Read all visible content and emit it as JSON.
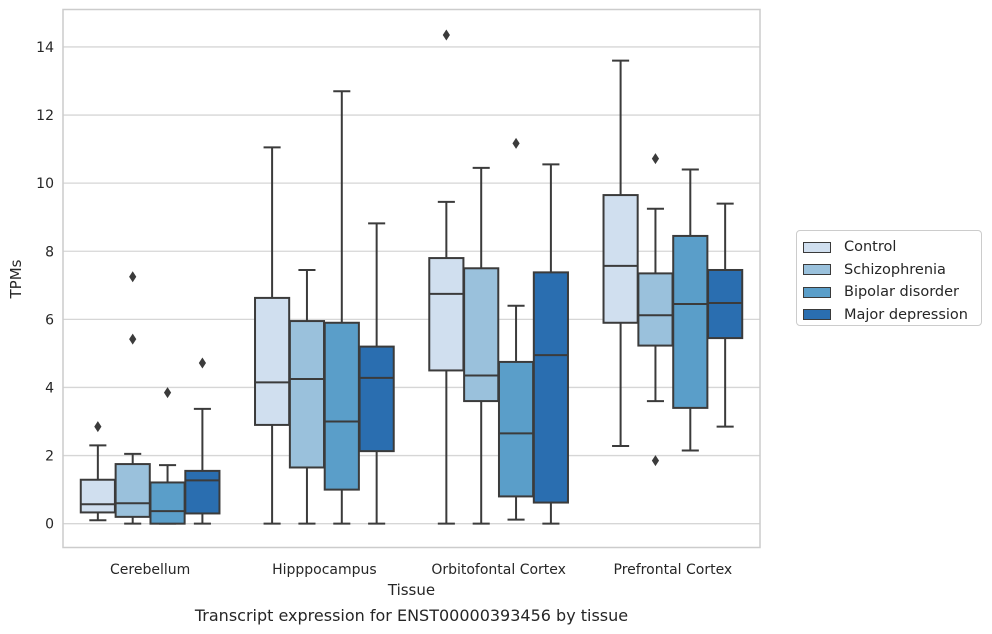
{
  "chart_data": {
    "type": "box",
    "caption": "Transcript expression for ENST00000393456 by tissue",
    "xlabel": "Tissue",
    "ylabel": "TPMs",
    "ylim": [
      -0.7,
      15.1
    ],
    "yticks": [
      0,
      2,
      4,
      6,
      8,
      10,
      12,
      14
    ],
    "grid": "horizontal",
    "legend_position": "right",
    "categories": [
      "Cerebellum",
      "Hipppocampus",
      "Orbitofontal Cortex",
      "Prefrontal Cortex"
    ],
    "series": [
      {
        "name": "Control",
        "color": "#d0dfef",
        "boxes": [
          {
            "whisker_low": 0.1,
            "q1": 0.33,
            "median": 0.57,
            "q3": 1.29,
            "whisker_high": 2.3,
            "outliers": [
              2.85
            ]
          },
          {
            "whisker_low": 0.0,
            "q1": 2.9,
            "median": 4.15,
            "q3": 6.63,
            "whisker_high": 11.05,
            "outliers": []
          },
          {
            "whisker_low": 0.0,
            "q1": 4.5,
            "median": 6.75,
            "q3": 7.8,
            "whisker_high": 9.45,
            "outliers": [
              14.35
            ]
          },
          {
            "whisker_low": 2.28,
            "q1": 5.9,
            "median": 7.57,
            "q3": 9.65,
            "whisker_high": 13.6,
            "outliers": []
          }
        ]
      },
      {
        "name": "Schizophrenia",
        "color": "#9ac1dc",
        "boxes": [
          {
            "whisker_low": 0.0,
            "q1": 0.2,
            "median": 0.6,
            "q3": 1.75,
            "whisker_high": 2.05,
            "outliers": [
              5.42,
              7.25
            ]
          },
          {
            "whisker_low": 0.0,
            "q1": 1.65,
            "median": 4.25,
            "q3": 5.95,
            "whisker_high": 7.45,
            "outliers": []
          },
          {
            "whisker_low": 0.0,
            "q1": 3.6,
            "median": 4.35,
            "q3": 7.5,
            "whisker_high": 10.45,
            "outliers": []
          },
          {
            "whisker_low": 3.6,
            "q1": 5.23,
            "median": 6.12,
            "q3": 7.35,
            "whisker_high": 9.25,
            "outliers": [
              1.85,
              10.72
            ]
          }
        ]
      },
      {
        "name": "Bipolar disorder",
        "color": "#5a9ec9",
        "boxes": [
          {
            "whisker_low": 0.0,
            "q1": 0.0,
            "median": 0.37,
            "q3": 1.21,
            "whisker_high": 1.72,
            "outliers": [
              3.85
            ]
          },
          {
            "whisker_low": 0.0,
            "q1": 1.0,
            "median": 3.0,
            "q3": 5.9,
            "whisker_high": 12.7,
            "outliers": []
          },
          {
            "whisker_low": 0.12,
            "q1": 0.8,
            "median": 2.65,
            "q3": 4.75,
            "whisker_high": 6.4,
            "outliers": [
              11.17
            ]
          },
          {
            "whisker_low": 2.15,
            "q1": 3.4,
            "median": 6.45,
            "q3": 8.45,
            "whisker_high": 10.4,
            "outliers": []
          }
        ]
      },
      {
        "name": "Major depression",
        "color": "#2a6eb0",
        "boxes": [
          {
            "whisker_low": 0.0,
            "q1": 0.3,
            "median": 1.27,
            "q3": 1.55,
            "whisker_high": 3.37,
            "outliers": [
              4.72
            ]
          },
          {
            "whisker_low": 0.0,
            "q1": 2.13,
            "median": 4.28,
            "q3": 5.2,
            "whisker_high": 8.82,
            "outliers": []
          },
          {
            "whisker_low": 0.0,
            "q1": 0.62,
            "median": 4.95,
            "q3": 7.38,
            "whisker_high": 10.55,
            "outliers": []
          },
          {
            "whisker_low": 2.85,
            "q1": 5.45,
            "median": 6.48,
            "q3": 7.45,
            "whisker_high": 9.4,
            "outliers": []
          }
        ]
      }
    ]
  }
}
